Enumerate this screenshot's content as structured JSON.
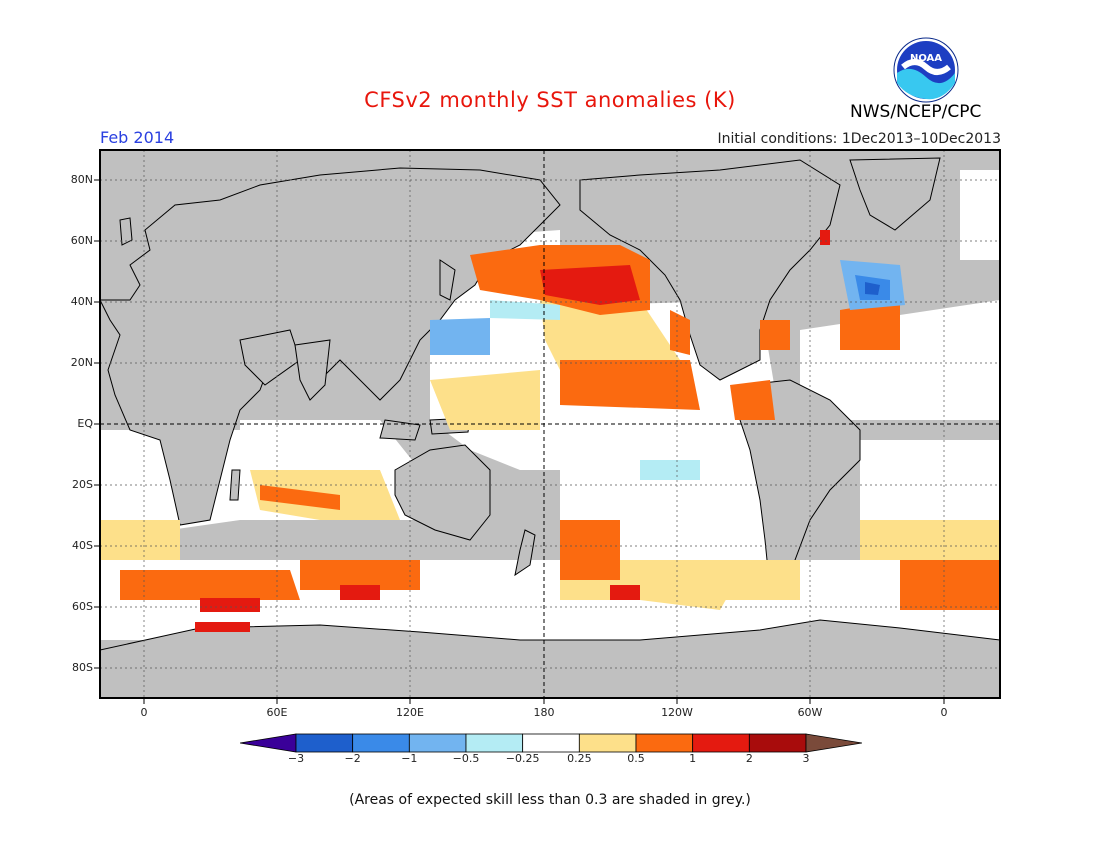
{
  "header": {
    "title": "CFSv2 monthly SST anomalies (K)",
    "month": "Feb 2014",
    "initial_conditions": "Initial conditions: 1Dec2013–10Dec2013",
    "agency": "NWS/NCEP/CPC",
    "logo_text": "NOAA"
  },
  "map": {
    "projection": "cylindrical equidistant",
    "lon_range": [
      -20,
      380
    ],
    "lat_range": [
      -90,
      90
    ],
    "land_color": "#c0c0c0",
    "low_skill_color": "#c0c0c0",
    "y_ticks": [
      "80N",
      "60N",
      "40N",
      "20N",
      "EQ",
      "20S",
      "40S",
      "60S",
      "80S"
    ],
    "x_ticks": [
      "0",
      "60E",
      "120E",
      "180",
      "120W",
      "60W",
      "0"
    ],
    "reference_lines": [
      "EQ",
      "180"
    ]
  },
  "colorbar": {
    "labels": [
      "−3",
      "−2",
      "−1",
      "−0.5",
      "−0.25",
      "0.25",
      "0.5",
      "1",
      "2",
      "3"
    ],
    "colors": [
      "#3a0099",
      "#1e5fcc",
      "#3a8ae8",
      "#72b4f0",
      "#b4ecf4",
      "#ffffff",
      "#fde08a",
      "#fb6a10",
      "#e41a10",
      "#a80c0c",
      "#7a4a3a"
    ]
  },
  "footnote": "(Areas of expected skill less than 0.3 are shaded in grey.)"
}
